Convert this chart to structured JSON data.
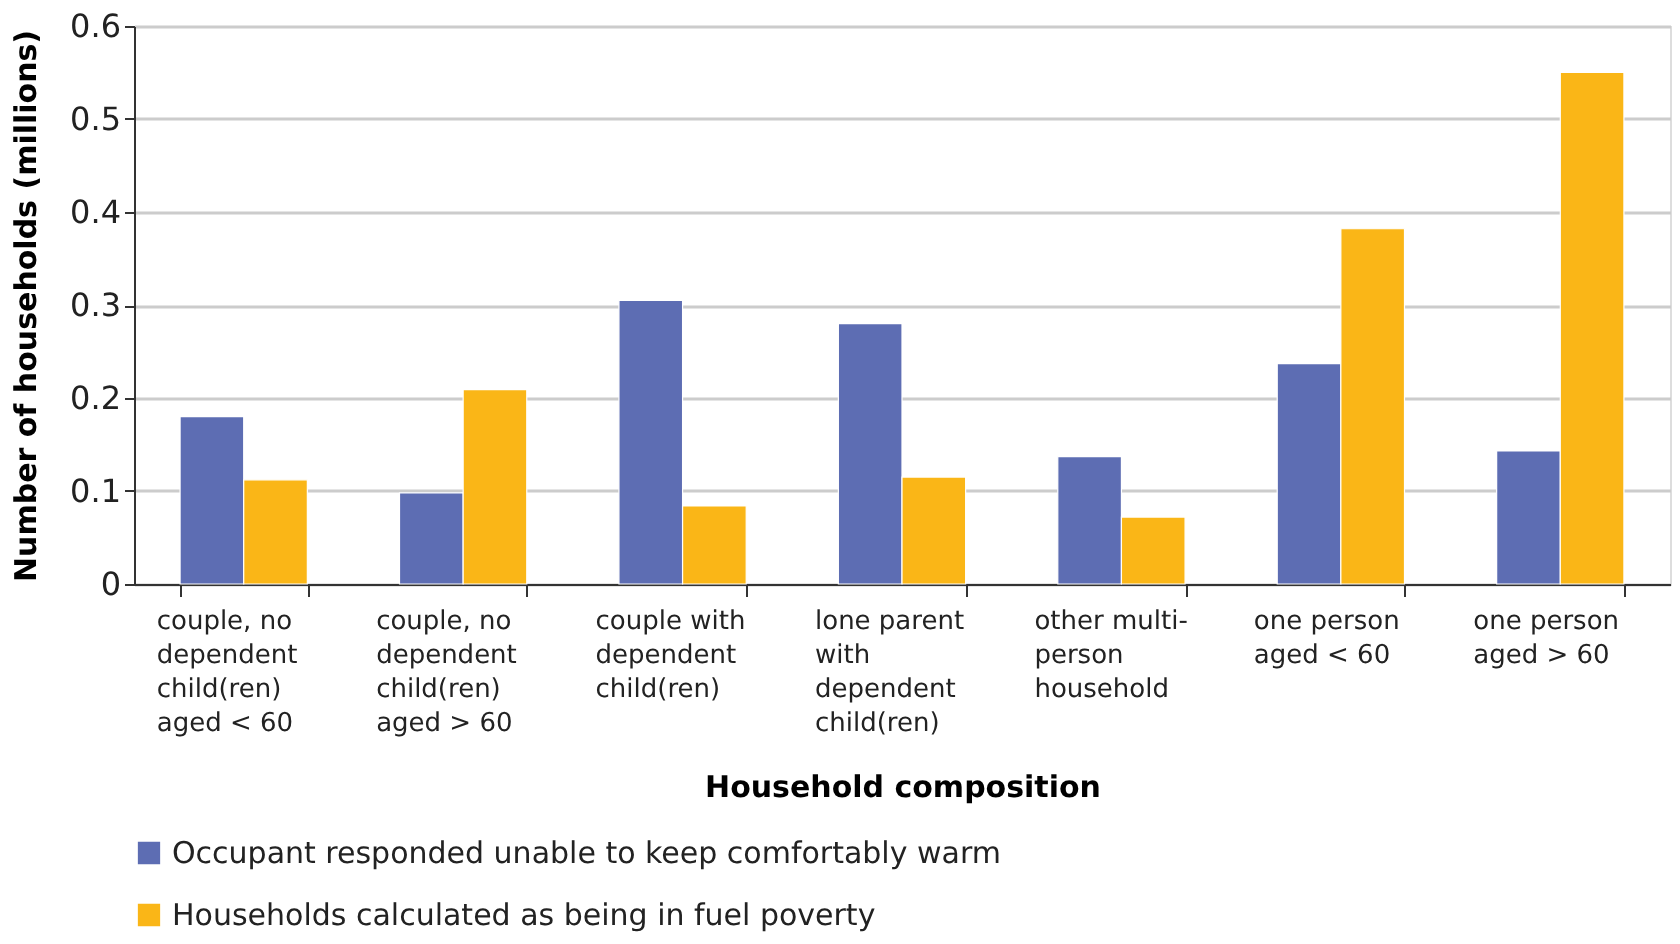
{
  "chart_data": {
    "type": "bar",
    "xlabel": "Household composition",
    "ylabel": "Number of households (millions)",
    "categories": [
      "couple, no\ndependent\nchild(ren)\naged < 60",
      "couple, no\ndependent\nchild(ren)\naged > 60",
      "couple with\ndependent\nchild(ren)",
      "lone parent\nwith\ndependent\nchild(ren)",
      "other multi-\nperson\nhousehold",
      "one person\naged < 60",
      "one person\naged > 60"
    ],
    "series": [
      {
        "name": "Occupant responded unable to keep comfortably warm",
        "color": "#5d6db3",
        "values": [
          0.18,
          0.098,
          0.305,
          0.28,
          0.137,
          0.237,
          0.143
        ]
      },
      {
        "name": "Households calculated as being in fuel poverty",
        "color": "#fab617",
        "values": [
          0.112,
          0.209,
          0.084,
          0.115,
          0.072,
          0.382,
          0.55
        ]
      }
    ],
    "ylim": [
      0,
      0.6
    ],
    "yticks": [
      0,
      0.1,
      0.2,
      0.3,
      0.4,
      0.5,
      0.6
    ],
    "grid": "y",
    "legend": "bottom"
  }
}
